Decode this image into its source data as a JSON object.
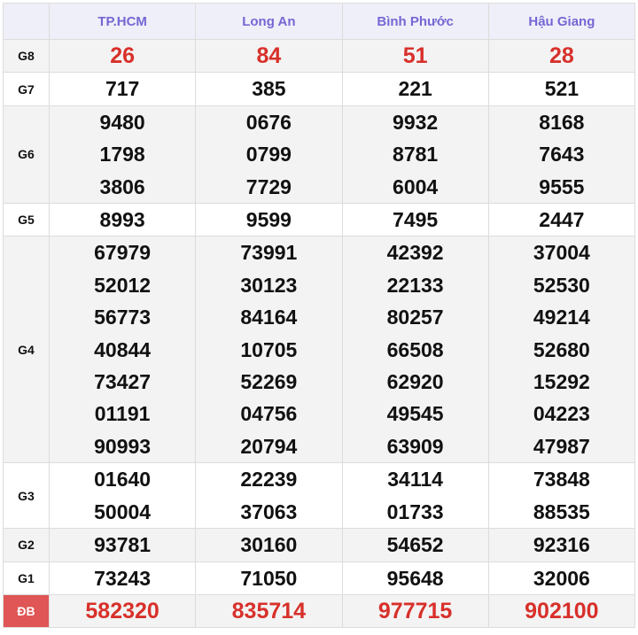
{
  "provinces": [
    "TP.HCM",
    "Long An",
    "Bình Phước",
    "Hậu Giang"
  ],
  "colors": {
    "header_text": "#7467d4",
    "special": "#d8302a",
    "db_label_bg": "#e05555"
  },
  "prizes": [
    {
      "label": "G8",
      "values": [
        [
          "26"
        ],
        [
          "84"
        ],
        [
          "51"
        ],
        [
          "28"
        ]
      ]
    },
    {
      "label": "G7",
      "values": [
        [
          "717"
        ],
        [
          "385"
        ],
        [
          "221"
        ],
        [
          "521"
        ]
      ]
    },
    {
      "label": "G6",
      "values": [
        [
          "9480",
          "1798",
          "3806"
        ],
        [
          "0676",
          "0799",
          "7729"
        ],
        [
          "9932",
          "8781",
          "6004"
        ],
        [
          "8168",
          "7643",
          "9555"
        ]
      ]
    },
    {
      "label": "G5",
      "values": [
        [
          "8993"
        ],
        [
          "9599"
        ],
        [
          "7495"
        ],
        [
          "2447"
        ]
      ]
    },
    {
      "label": "G4",
      "values": [
        [
          "67979",
          "52012",
          "56773",
          "40844",
          "73427",
          "01191",
          "90993"
        ],
        [
          "73991",
          "30123",
          "84164",
          "10705",
          "52269",
          "04756",
          "20794"
        ],
        [
          "42392",
          "22133",
          "80257",
          "66508",
          "62920",
          "49545",
          "63909"
        ],
        [
          "37004",
          "52530",
          "49214",
          "52680",
          "15292",
          "04223",
          "47987"
        ]
      ]
    },
    {
      "label": "G3",
      "values": [
        [
          "01640",
          "50004"
        ],
        [
          "22239",
          "37063"
        ],
        [
          "34114",
          "01733"
        ],
        [
          "73848",
          "88535"
        ]
      ]
    },
    {
      "label": "G2",
      "values": [
        [
          "93781"
        ],
        [
          "30160"
        ],
        [
          "54652"
        ],
        [
          "92316"
        ]
      ]
    },
    {
      "label": "G1",
      "values": [
        [
          "73243"
        ],
        [
          "71050"
        ],
        [
          "95648"
        ],
        [
          "32006"
        ]
      ]
    },
    {
      "label": "ĐB",
      "values": [
        [
          "582320"
        ],
        [
          "835714"
        ],
        [
          "977715"
        ],
        [
          "902100"
        ]
      ]
    }
  ]
}
